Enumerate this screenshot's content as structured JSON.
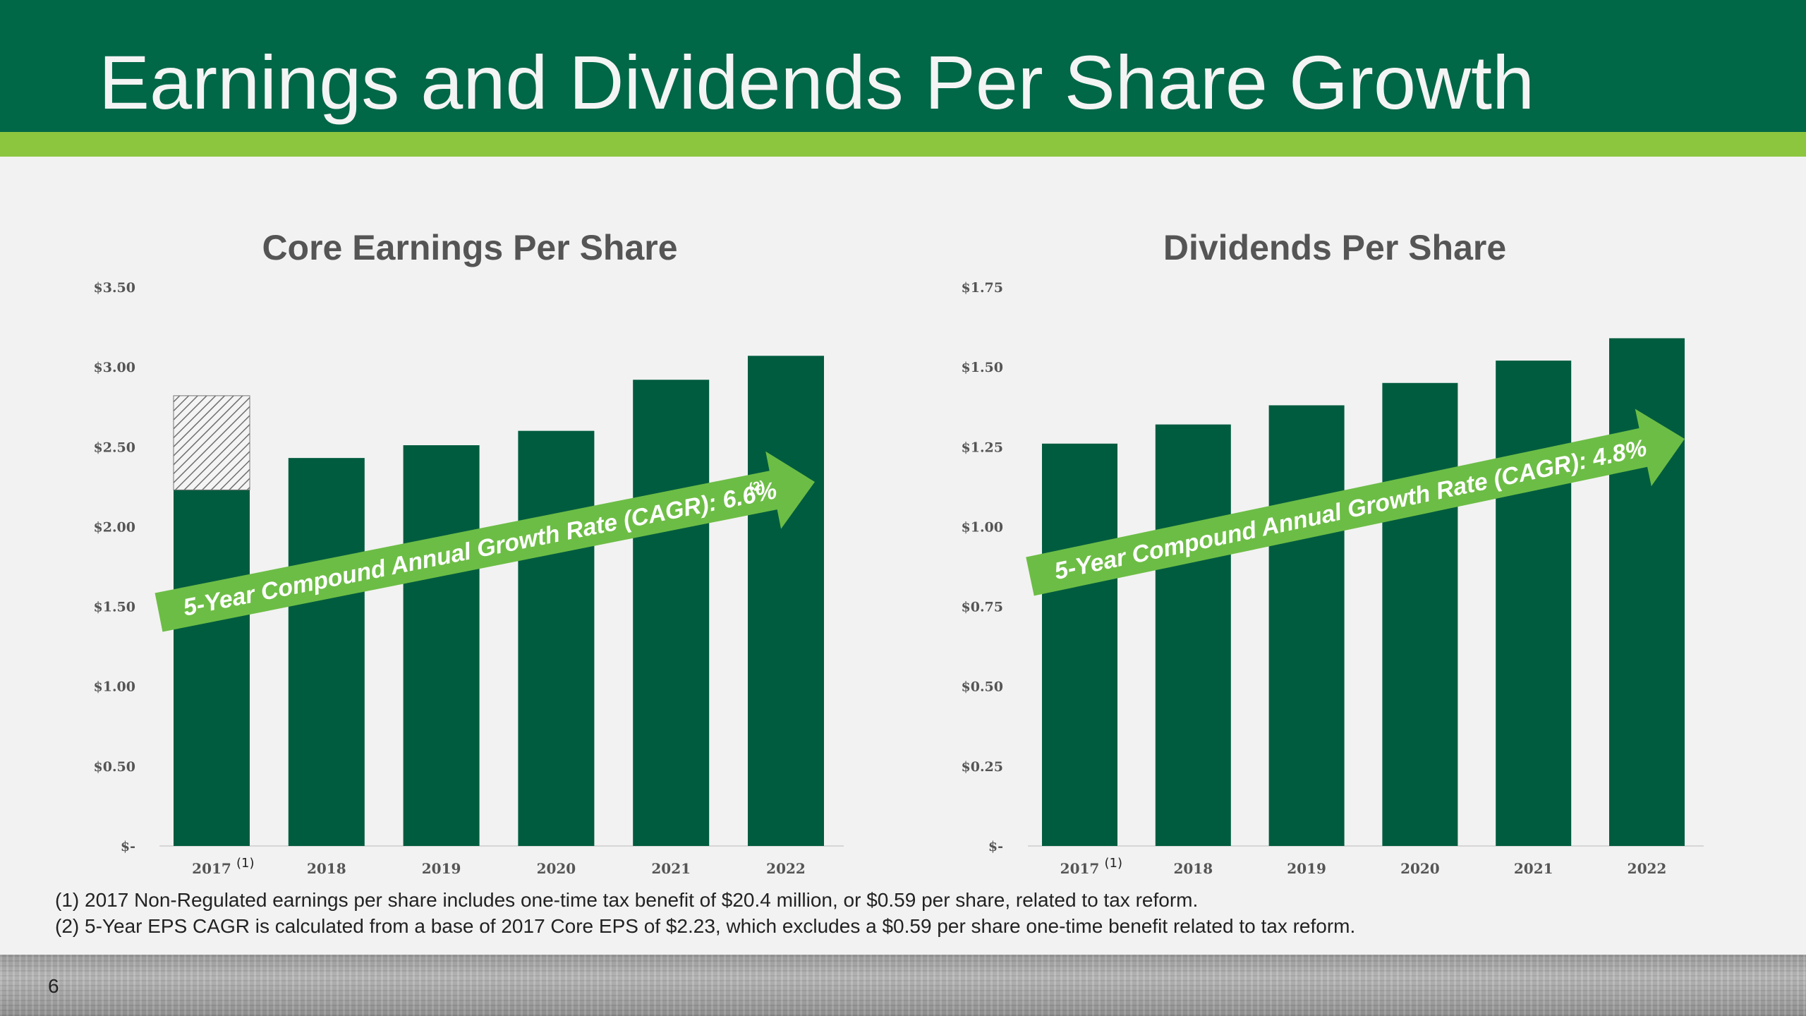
{
  "page": {
    "title": "Earnings and Dividends Per Share Growth",
    "page_number": "6",
    "colors": {
      "header": "#006747",
      "stripe": "#8cc63f",
      "bar": "#005c3f",
      "arrow": "#6cbd45"
    }
  },
  "footnotes": {
    "note1": "(1)  2017 Non-Regulated earnings per share includes one-time tax benefit of $20.4 million, or $0.59 per share, related to tax reform.",
    "note2": "(2) 5-Year EPS CAGR is calculated from a base of 2017 Core EPS of $2.23, which excludes a $0.59 per share one-time benefit related to tax reform."
  },
  "chart_data": [
    {
      "type": "bar",
      "title": "Core Earnings Per Share",
      "categories": [
        "2017",
        "2018",
        "2019",
        "2020",
        "2021",
        "2022"
      ],
      "category_notes": [
        "(1)",
        "",
        "",
        "",
        "",
        ""
      ],
      "series": [
        {
          "name": "Core EPS",
          "values": [
            2.23,
            2.43,
            2.51,
            2.6,
            2.92,
            3.07
          ]
        },
        {
          "name": "One-time tax benefit",
          "values": [
            0.59,
            0,
            0,
            0,
            0,
            0
          ],
          "pattern": "hatched"
        }
      ],
      "ylim": [
        0,
        3.5
      ],
      "yticks": [
        0,
        0.5,
        1.0,
        1.5,
        2.0,
        2.5,
        3.0,
        3.5
      ],
      "ytick_labels": [
        "$-",
        "$0.50",
        "$1.00",
        "$1.50",
        "$2.00",
        "$2.50",
        "$3.00",
        "$3.50"
      ],
      "annotation": {
        "text": "5-Year Compound Annual Growth Rate (CAGR): 6.6%",
        "superscript": "(2)"
      }
    },
    {
      "type": "bar",
      "title": "Dividends Per Share",
      "categories": [
        "2017",
        "2018",
        "2019",
        "2020",
        "2021",
        "2022"
      ],
      "category_notes": [
        "(1)",
        "",
        "",
        "",
        "",
        ""
      ],
      "series": [
        {
          "name": "Dividends Per Share",
          "values": [
            1.26,
            1.32,
            1.38,
            1.45,
            1.52,
            1.59
          ]
        }
      ],
      "ylim": [
        0,
        1.75
      ],
      "yticks": [
        0,
        0.25,
        0.5,
        0.75,
        1.0,
        1.25,
        1.5,
        1.75
      ],
      "ytick_labels": [
        "$-",
        "$0.25",
        "$0.50",
        "$0.75",
        "$1.00",
        "$1.25",
        "$1.50",
        "$1.75"
      ],
      "annotation": {
        "text": "5-Year Compound Annual Growth Rate (CAGR): 4.8%",
        "superscript": ""
      }
    }
  ]
}
